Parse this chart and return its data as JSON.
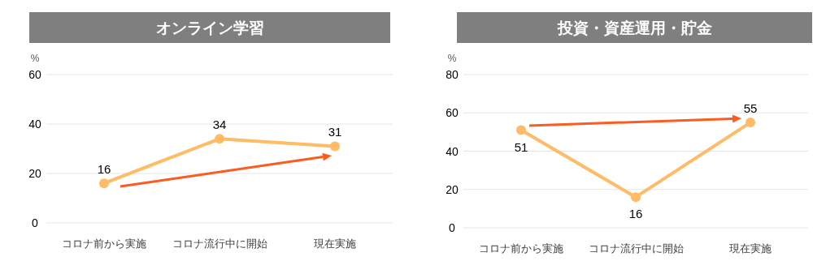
{
  "chart_data": [
    {
      "type": "line",
      "title": "オンライン学習",
      "ylabel": "%",
      "categories": [
        "コロナ前から実施",
        "コロナ流行中に開始",
        "現在実施"
      ],
      "series": [
        {
          "color": "#ffbb66",
          "values": [
            16,
            34,
            31
          ]
        }
      ],
      "ylim": [
        0,
        60
      ],
      "yticks": [
        0,
        20,
        40,
        60
      ],
      "grid": "y",
      "marker": "circle",
      "data_labels": true
    },
    {
      "type": "line",
      "title": "投資・資産運用・貯金",
      "ylabel": "%",
      "categories": [
        "コロナ前から実施",
        "コロナ流行中に開始",
        "現在実施"
      ],
      "series": [
        {
          "color": "#ffbb66",
          "values": [
            51,
            16,
            55
          ]
        }
      ],
      "ylim": [
        0,
        80
      ],
      "yticks": [
        0,
        20,
        40,
        60,
        80
      ],
      "grid": "y",
      "marker": "circle",
      "data_labels": true
    }
  ]
}
